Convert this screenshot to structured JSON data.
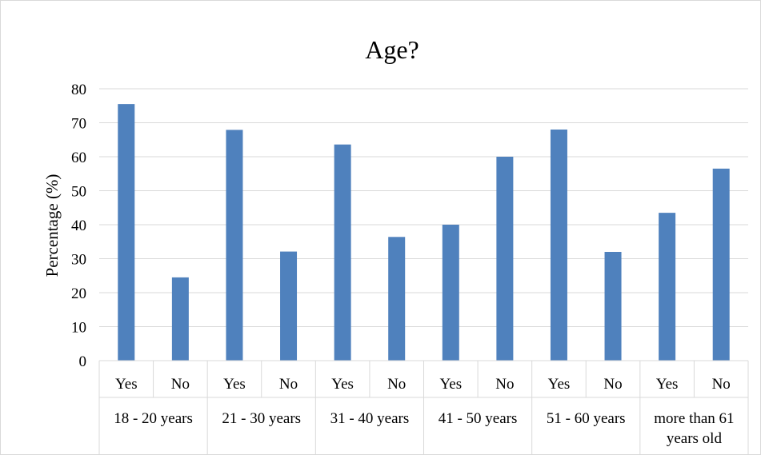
{
  "chart_data": {
    "type": "bar",
    "title": "Age?",
    "ylabel": "Percentage (%)",
    "xlabel": "",
    "ylim": [
      0,
      80
    ],
    "yticks": [
      0,
      10,
      20,
      30,
      40,
      50,
      60,
      70,
      80
    ],
    "grid": true,
    "legend": "none",
    "bar_color": "#4f81bd",
    "groups": [
      {
        "label_lines": [
          "18 - 20 years"
        ],
        "categories": [
          "Yes",
          "No"
        ],
        "values": [
          75.5,
          24.5
        ]
      },
      {
        "label_lines": [
          "21 - 30 years"
        ],
        "categories": [
          "Yes",
          "No"
        ],
        "values": [
          67.9,
          32.1
        ]
      },
      {
        "label_lines": [
          "31 - 40 years"
        ],
        "categories": [
          "Yes",
          "No"
        ],
        "values": [
          63.6,
          36.4
        ]
      },
      {
        "label_lines": [
          "41 - 50 years"
        ],
        "categories": [
          "Yes",
          "No"
        ],
        "values": [
          40.0,
          60.0
        ]
      },
      {
        "label_lines": [
          "51 - 60 years"
        ],
        "categories": [
          "Yes",
          "No"
        ],
        "values": [
          68.0,
          32.0
        ]
      },
      {
        "label_lines": [
          "more than 61",
          "years old"
        ],
        "categories": [
          "Yes",
          "No"
        ],
        "values": [
          43.5,
          56.5
        ]
      }
    ]
  }
}
